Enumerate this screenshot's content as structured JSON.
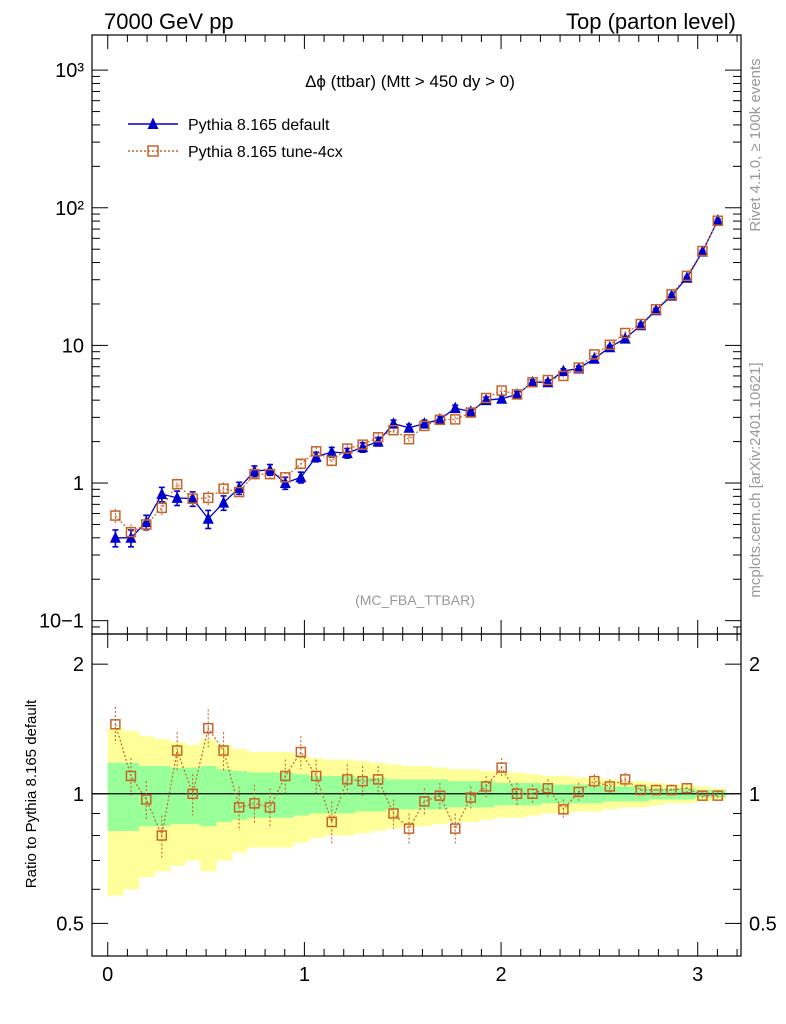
{
  "header": {
    "left": "7000 GeV pp",
    "right": "Top (parton level)"
  },
  "side_labels": {
    "rivet": "Rivet 4.1.0, ≥ 100k events",
    "mcplots": "mcplots.cern.ch [arXiv:2401.10621]"
  },
  "chart_data": {
    "type": "scatter",
    "title": "Δϕ (ttbar) (Mtt > 450 dy > 0)",
    "watermark": "(MC_FBA_TTBAR)",
    "ratio_ylabel": "Ratio to Pythia 8.165 default",
    "main_ytick_labels": [
      "10−1",
      "1",
      "10",
      "10²",
      "10³"
    ],
    "main_ytick_values": [
      0.1,
      1,
      10,
      100,
      1000
    ],
    "ratio_ytick_labels": [
      "0.5",
      "1",
      "2"
    ],
    "ratio_ytick_values": [
      0.5,
      1,
      2
    ],
    "xtick_labels": [
      "0",
      "1",
      "2",
      "3"
    ],
    "xtick_values": [
      0,
      1,
      2,
      3
    ],
    "xlim": [
      -0.08,
      3.22
    ],
    "ylim_main": [
      0.08,
      1800
    ],
    "ylim_ratio": [
      0.42,
      2.35
    ],
    "x": [
      0.039,
      0.118,
      0.196,
      0.275,
      0.353,
      0.432,
      0.511,
      0.589,
      0.668,
      0.746,
      0.825,
      0.903,
      0.982,
      1.06,
      1.139,
      1.218,
      1.296,
      1.375,
      1.453,
      1.532,
      1.61,
      1.689,
      1.767,
      1.846,
      1.924,
      2.003,
      2.081,
      2.16,
      2.238,
      2.317,
      2.395,
      2.474,
      2.553,
      2.631,
      2.71,
      2.788,
      2.867,
      2.945,
      3.024,
      3.102
    ],
    "series": [
      {
        "name": "Pythia 8.165 default",
        "color": "#0000cc",
        "marker": "triangle",
        "values": [
          0.4,
          0.4,
          0.52,
          0.83,
          0.78,
          0.77,
          0.55,
          0.72,
          0.92,
          1.22,
          1.25,
          1.0,
          1.1,
          1.55,
          1.68,
          1.65,
          1.82,
          2.0,
          2.7,
          2.52,
          2.7,
          2.9,
          3.5,
          3.3,
          4.0,
          4.1,
          4.4,
          5.4,
          5.4,
          6.5,
          6.8,
          8.0,
          9.7,
          11.2,
          14.0,
          18.0,
          23.0,
          31.0,
          48.0,
          81.0
        ],
        "err_rel": [
          0.14,
          0.14,
          0.12,
          0.12,
          0.12,
          0.12,
          0.15,
          0.12,
          0.1,
          0.09,
          0.09,
          0.1,
          0.09,
          0.08,
          0.08,
          0.08,
          0.08,
          0.07,
          0.06,
          0.06,
          0.06,
          0.06,
          0.05,
          0.05,
          0.05,
          0.05,
          0.05,
          0.04,
          0.04,
          0.04,
          0.04,
          0.04,
          0.03,
          0.03,
          0.03,
          0.03,
          0.02,
          0.02,
          0.02,
          0.02
        ]
      },
      {
        "name": "Pythia 8.165 tune-4cx",
        "color": "#c86428",
        "marker": "open-square",
        "values": [
          0.58,
          0.44,
          0.5,
          0.66,
          0.98,
          0.77,
          0.78,
          0.91,
          0.86,
          1.16,
          1.16,
          1.1,
          1.38,
          1.7,
          1.45,
          1.78,
          1.9,
          2.15,
          2.42,
          2.08,
          2.6,
          2.88,
          2.9,
          3.25,
          4.15,
          4.7,
          4.4,
          5.4,
          5.6,
          6.0,
          6.9,
          8.6,
          10.1,
          12.3,
          14.3,
          18.3,
          23.5,
          32.0,
          48.5,
          80.5
        ],
        "err_rel": [
          0.12,
          0.14,
          0.12,
          0.12,
          0.1,
          0.12,
          0.12,
          0.11,
          0.1,
          0.09,
          0.09,
          0.09,
          0.08,
          0.07,
          0.08,
          0.07,
          0.07,
          0.07,
          0.06,
          0.06,
          0.06,
          0.05,
          0.05,
          0.05,
          0.05,
          0.05,
          0.05,
          0.04,
          0.04,
          0.04,
          0.04,
          0.04,
          0.03,
          0.03,
          0.03,
          0.03,
          0.02,
          0.02,
          0.02,
          0.02
        ]
      }
    ],
    "ratio": {
      "values": [
        1.45,
        1.1,
        0.97,
        0.8,
        1.26,
        1.0,
        1.42,
        1.26,
        0.93,
        0.95,
        0.93,
        1.1,
        1.25,
        1.1,
        0.86,
        1.08,
        1.07,
        1.08,
        0.9,
        0.83,
        0.96,
        0.99,
        0.83,
        0.98,
        1.04,
        1.15,
        1.0,
        1.0,
        1.03,
        0.92,
        1.01,
        1.07,
        1.04,
        1.08,
        1.02,
        1.02,
        1.02,
        1.03,
        0.99,
        0.99
      ],
      "err": [
        0.14,
        0.11,
        0.1,
        0.09,
        0.13,
        0.11,
        0.15,
        0.13,
        0.11,
        0.1,
        0.1,
        0.1,
        0.11,
        0.1,
        0.1,
        0.09,
        0.09,
        0.08,
        0.07,
        0.07,
        0.07,
        0.07,
        0.07,
        0.06,
        0.06,
        0.06,
        0.06,
        0.05,
        0.05,
        0.05,
        0.05,
        0.04,
        0.04,
        0.04,
        0.03,
        0.03,
        0.03,
        0.03,
        0.02,
        0.02
      ],
      "band_inner": [
        0.18,
        0.18,
        0.16,
        0.16,
        0.15,
        0.15,
        0.16,
        0.14,
        0.13,
        0.12,
        0.12,
        0.12,
        0.11,
        0.1,
        0.1,
        0.1,
        0.09,
        0.09,
        0.08,
        0.08,
        0.08,
        0.08,
        0.07,
        0.07,
        0.07,
        0.06,
        0.06,
        0.06,
        0.05,
        0.05,
        0.05,
        0.05,
        0.04,
        0.04,
        0.04,
        0.03,
        0.03,
        0.03,
        0.02,
        0.02
      ],
      "band_outer": [
        0.42,
        0.4,
        0.36,
        0.34,
        0.32,
        0.3,
        0.34,
        0.3,
        0.27,
        0.25,
        0.25,
        0.25,
        0.23,
        0.21,
        0.2,
        0.2,
        0.19,
        0.18,
        0.17,
        0.16,
        0.16,
        0.15,
        0.14,
        0.14,
        0.13,
        0.12,
        0.12,
        0.11,
        0.1,
        0.1,
        0.09,
        0.09,
        0.08,
        0.07,
        0.07,
        0.06,
        0.05,
        0.05,
        0.04,
        0.03
      ],
      "band_inner_color": "#99ff99",
      "band_outer_color": "#ffff99"
    }
  }
}
